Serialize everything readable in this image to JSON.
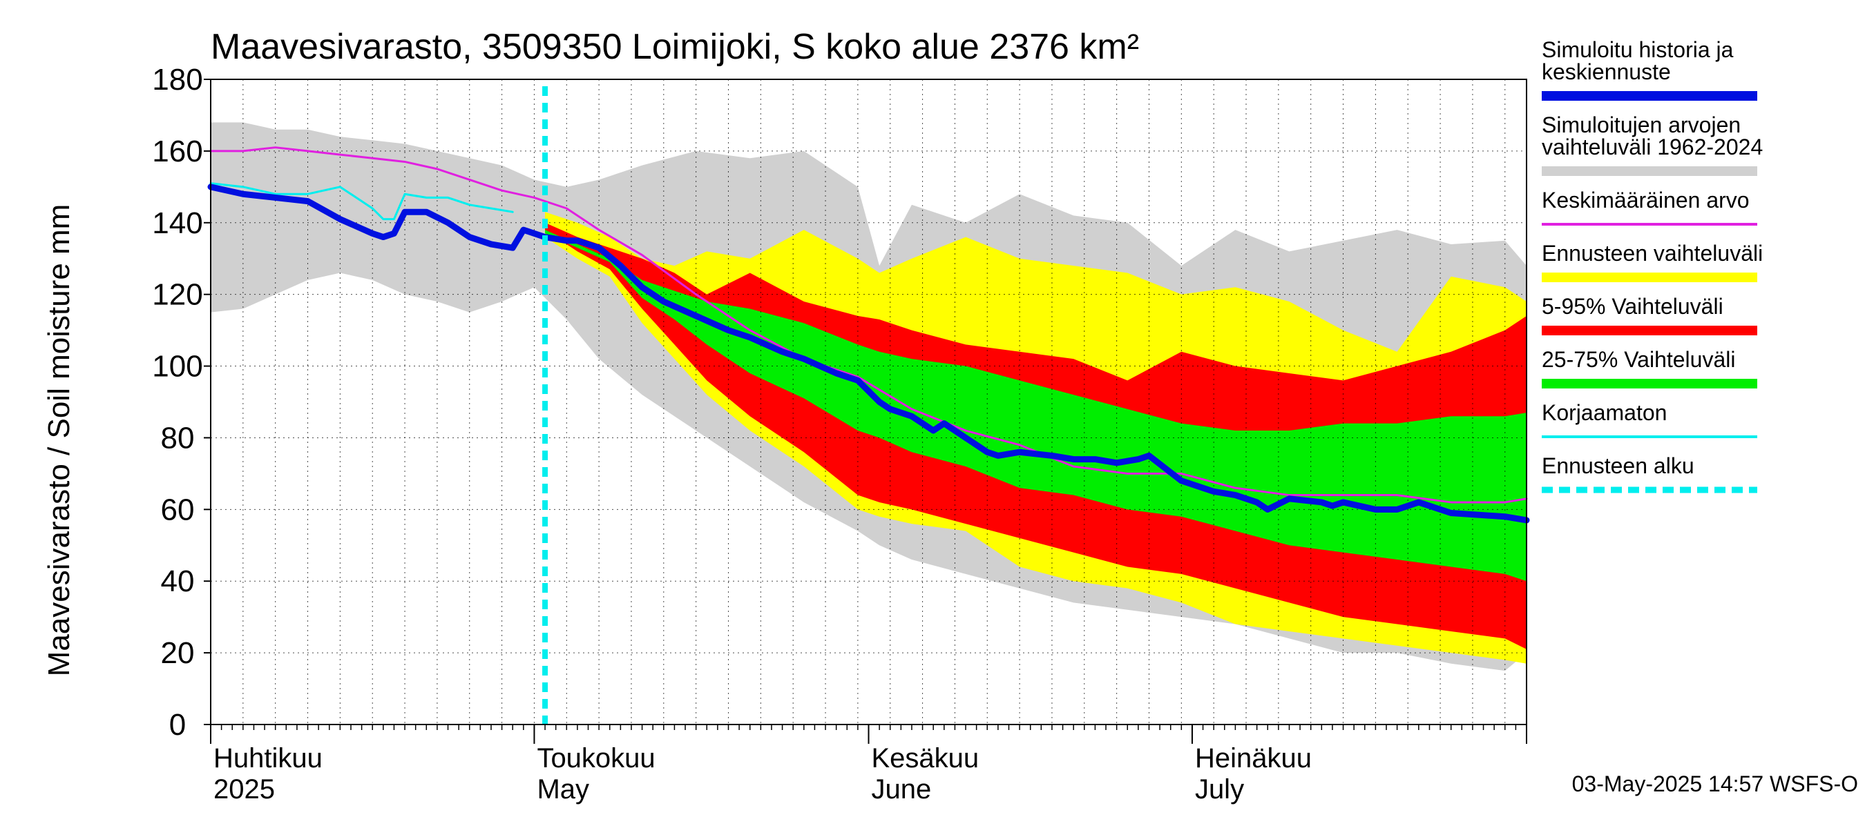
{
  "chart_data": {
    "type": "area",
    "title": "Maavesivarasto, 3509350 Loimijoki, S koko alue 2376 km²",
    "ylabel": "Maavesivarasto / Soil moisture   mm",
    "ylim": [
      0,
      180
    ],
    "y_ticks": [
      0,
      20,
      40,
      60,
      80,
      100,
      120,
      140,
      160,
      180
    ],
    "x_range_days": [
      0,
      122
    ],
    "x_day_note": "day 0 = 2025-04-01, day 122 = 2025-08-01",
    "forecast_start_day": 31,
    "month_labels": [
      {
        "fi": "Huhtikuu",
        "en": "2025",
        "day": 0
      },
      {
        "fi": "Toukokuu",
        "en": "May",
        "day": 30
      },
      {
        "fi": "Kesäkuu",
        "en": "June",
        "day": 61
      },
      {
        "fi": "Heinäkuu",
        "en": "July",
        "day": 91
      }
    ],
    "series": [
      {
        "name": "Simuloitujen arvojen vaihteluväli 1962-2024",
        "kind": "band",
        "color": "#d0d0d0",
        "x": [
          0,
          3,
          6,
          9,
          12,
          15,
          18,
          21,
          24,
          27,
          30,
          33,
          36,
          40,
          45,
          50,
          55,
          60,
          62,
          65,
          70,
          75,
          80,
          85,
          90,
          95,
          100,
          105,
          110,
          115,
          120,
          122
        ],
        "upper": [
          168,
          168,
          166,
          166,
          164,
          163,
          162,
          160,
          158,
          156,
          152,
          150,
          152,
          156,
          160,
          158,
          160,
          150,
          128,
          145,
          140,
          148,
          142,
          140,
          128,
          138,
          132,
          135,
          138,
          134,
          135,
          128
        ],
        "lower": [
          115,
          116,
          120,
          124,
          126,
          124,
          120,
          118,
          115,
          118,
          122,
          113,
          102,
          92,
          82,
          72,
          62,
          54,
          50,
          46,
          42,
          38,
          34,
          32,
          30,
          28,
          24,
          20,
          20,
          17,
          15,
          20
        ]
      },
      {
        "name": "Ennusteen vaihteluväli",
        "kind": "band",
        "color": "#ffff00",
        "x": [
          31,
          34,
          37,
          40,
          43,
          46,
          50,
          55,
          60,
          62,
          65,
          70,
          75,
          80,
          85,
          90,
          95,
          100,
          105,
          110,
          115,
          120,
          122
        ],
        "upper": [
          143,
          140,
          136,
          130,
          128,
          132,
          130,
          138,
          130,
          126,
          130,
          136,
          130,
          128,
          126,
          120,
          122,
          118,
          110,
          104,
          125,
          122,
          118
        ],
        "lower": [
          136,
          130,
          125,
          112,
          102,
          92,
          82,
          72,
          60,
          58,
          56,
          54,
          44,
          40,
          38,
          34,
          28,
          26,
          24,
          22,
          20,
          18,
          17
        ]
      },
      {
        "name": "5-95% Vaihteluväli",
        "kind": "band",
        "color": "#ff0000",
        "x": [
          31,
          34,
          37,
          40,
          43,
          46,
          50,
          55,
          60,
          62,
          65,
          70,
          75,
          80,
          85,
          90,
          95,
          100,
          105,
          110,
          115,
          120,
          122
        ],
        "upper": [
          140,
          136,
          133,
          130,
          126,
          120,
          126,
          118,
          114,
          113,
          110,
          106,
          104,
          102,
          96,
          104,
          100,
          98,
          96,
          100,
          104,
          110,
          114
        ],
        "lower": [
          138,
          132,
          127,
          116,
          106,
          96,
          86,
          76,
          64,
          62,
          60,
          56,
          52,
          48,
          44,
          42,
          38,
          34,
          30,
          28,
          26,
          24,
          21
        ]
      },
      {
        "name": "25-75% Vaihteluväli",
        "kind": "band",
        "color": "#00ee00",
        "x": [
          31,
          34,
          37,
          40,
          43,
          46,
          50,
          55,
          60,
          62,
          65,
          70,
          75,
          80,
          85,
          90,
          95,
          100,
          105,
          110,
          115,
          120,
          122
        ],
        "upper": [
          138,
          134,
          130,
          124,
          121,
          118,
          116,
          112,
          106,
          104,
          102,
          100,
          96,
          92,
          88,
          84,
          82,
          82,
          84,
          84,
          86,
          86,
          87
        ],
        "lower": [
          137,
          133,
          129,
          119,
          113,
          106,
          98,
          91,
          82,
          80,
          76,
          72,
          66,
          64,
          60,
          58,
          54,
          50,
          48,
          46,
          44,
          42,
          40
        ]
      },
      {
        "name": "Keskimääräinen arvo",
        "kind": "line",
        "color": "#e020e0",
        "width": 3,
        "x": [
          0,
          3,
          6,
          9,
          12,
          15,
          18,
          21,
          24,
          27,
          30,
          33,
          36,
          40,
          45,
          50,
          55,
          60,
          65,
          70,
          75,
          80,
          85,
          90,
          95,
          100,
          105,
          110,
          115,
          120,
          122
        ],
        "y": [
          160,
          160,
          161,
          160,
          159,
          158,
          157,
          155,
          152,
          149,
          147,
          144,
          138,
          131,
          120,
          110,
          102,
          97,
          88,
          82,
          78,
          72,
          70,
          70,
          66,
          64,
          64,
          64,
          62,
          62,
          63
        ]
      },
      {
        "name": "Korjaamaton",
        "kind": "line",
        "color": "#00eeee",
        "width": 3,
        "x": [
          0,
          3,
          6,
          9,
          12,
          15,
          16,
          17,
          18,
          20,
          22,
          24,
          26,
          28
        ],
        "y": [
          151,
          150,
          148,
          148,
          150,
          144,
          141,
          141,
          148,
          147,
          147,
          145,
          144,
          143
        ]
      },
      {
        "name": "Simuloitu historia ja keskiennuste",
        "kind": "line",
        "color": "#0010e0",
        "width": 9,
        "x": [
          0,
          3,
          6,
          9,
          12,
          15,
          16,
          17,
          18,
          20,
          22,
          24,
          26,
          28,
          29,
          30,
          31,
          33,
          34,
          36,
          38,
          40,
          42,
          45,
          48,
          50,
          53,
          55,
          58,
          60,
          62,
          63,
          65,
          67,
          68,
          70,
          72,
          73,
          75,
          78,
          80,
          82,
          84,
          86,
          87,
          90,
          93,
          95,
          97,
          98,
          100,
          103,
          104,
          105,
          108,
          110,
          112,
          115,
          120,
          122
        ],
        "y": [
          150,
          148,
          147,
          146,
          141,
          137,
          136,
          137,
          143,
          143,
          140,
          136,
          134,
          133,
          138,
          137,
          136,
          135,
          135,
          133,
          128,
          122,
          118,
          114,
          110,
          108,
          104,
          102,
          98,
          96,
          90,
          88,
          86,
          82,
          84,
          80,
          76,
          75,
          76,
          75,
          74,
          74,
          73,
          74,
          75,
          68,
          65,
          64,
          62,
          60,
          63,
          62,
          61,
          62,
          60,
          60,
          62,
          59,
          58,
          57
        ]
      }
    ],
    "legend": [
      {
        "label": "Simuloitu historia ja keskiennuste",
        "color": "#0010e0",
        "style": "thick"
      },
      {
        "label": "Simuloitujen arvojen vaihteluväli 1962-2024",
        "color": "#d0d0d0",
        "style": "thick"
      },
      {
        "label": "Keskimääräinen arvo",
        "color": "#e020e0",
        "style": "thin"
      },
      {
        "label": "Ennusteen vaihteluväli",
        "color": "#ffff00",
        "style": "thick"
      },
      {
        "label": "5-95% Vaihteluväli",
        "color": "#ff0000",
        "style": "thick"
      },
      {
        "label": "25-75% Vaihteluväli",
        "color": "#00ee00",
        "style": "thick"
      },
      {
        "label": "Korjaamaton",
        "color": "#00eeee",
        "style": "thin"
      },
      {
        "label": "Ennusteen alku",
        "color": "#00eeee",
        "style": "dashed"
      }
    ],
    "footer": "03-May-2025 14:57 WSFS-O"
  }
}
